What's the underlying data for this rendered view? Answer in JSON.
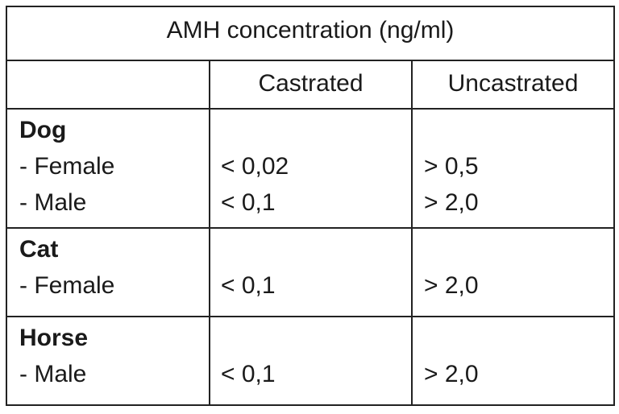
{
  "table": {
    "title": "AMH concentration (ng/ml)",
    "columns": [
      "Castrated",
      "Uncastrated"
    ],
    "groups": [
      {
        "name": "Dog",
        "rows": [
          {
            "label": "- Female",
            "castrated": "< 0,02",
            "uncastrated": "> 0,5"
          },
          {
            "label": "- Male",
            "castrated": "< 0,1",
            "uncastrated": "> 2,0"
          }
        ]
      },
      {
        "name": "Cat",
        "rows": [
          {
            "label": "- Female",
            "castrated": "< 0,1",
            "uncastrated": "> 2,0"
          }
        ]
      },
      {
        "name": "Horse",
        "rows": [
          {
            "label": "- Male",
            "castrated": "< 0,1",
            "uncastrated": "> 2,0"
          }
        ]
      }
    ]
  }
}
